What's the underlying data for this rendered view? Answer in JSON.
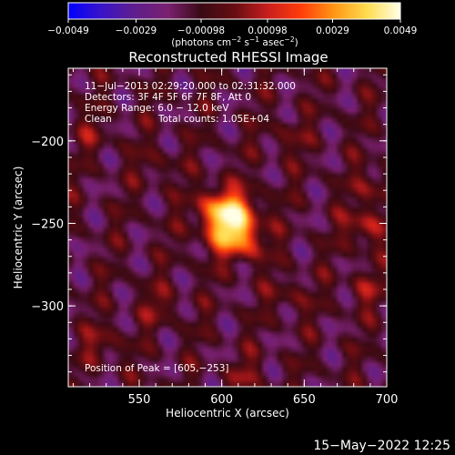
{
  "colors": {
    "background": "#000000",
    "axis": "#ffffff",
    "colormap": [
      "#0000ff",
      "#3a14c8",
      "#5f1e8c",
      "#7a2070",
      "#3a0a14",
      "#650d12",
      "#c81e1e",
      "#ff3c0a",
      "#ff9614",
      "#ffdc50",
      "#ffffe6"
    ]
  },
  "colorbar": {
    "tick_labels": [
      "−0.0049",
      "−0.0029",
      "−0.00098",
      "0.00098",
      "0.0029",
      "0.0049"
    ],
    "ticks": [
      -0.0049,
      -0.0029,
      -0.00098,
      0.00098,
      0.0029,
      0.0049
    ],
    "range": [
      -0.0049,
      0.0049
    ],
    "unit_text": "(photons cm",
    "unit_exp1": "−2",
    "unit_mid": " s",
    "unit_exp2": "−1",
    "unit_mid2": " asec",
    "unit_exp3": "−2",
    "unit_close": ")"
  },
  "overlay": {
    "time_range": "11−Jul−2013 02:29:20.000 to 02:31:32.000",
    "detectors": "Detectors: 3F 4F 5F 6F 7F 8F, Att 0",
    "energy": "Energy Range: 6.0 − 12.0 keV",
    "method": "Clean",
    "counts": "Total counts: 1.05E+04",
    "peak": "Position of Peak = [605,−253]"
  },
  "footer": {
    "date": "15−May−2022 12:25"
  },
  "chart_data": {
    "type": "heatmap",
    "title": "Reconstructed RHESSI Image",
    "xlabel": "Heliocentric X (arcsec)",
    "ylabel": "Heliocentric Y (arcsec)",
    "xlim": [
      507,
      700
    ],
    "ylim": [
      -349,
      -156
    ],
    "x_ticks": [
      550,
      600,
      650,
      700
    ],
    "x_tick_labels": [
      "550",
      "600",
      "650",
      "700"
    ],
    "y_ticks": [
      -200,
      -250,
      -300
    ],
    "y_tick_labels": [
      "−200",
      "−250",
      "−300"
    ],
    "value_range": [
      -0.0049,
      0.0049
    ],
    "peak": [
      605,
      -253
    ],
    "peak_value": 0.0049,
    "sources": [
      {
        "x": 605,
        "y": -251,
        "amp": 0.0049
      },
      {
        "x": 596,
        "y": -239,
        "amp": 0.0022
      },
      {
        "x": 614,
        "y": -262,
        "amp": 0.0018
      },
      {
        "x": 612,
        "y": -240,
        "amp": 0.0012
      },
      {
        "x": 686,
        "y": -252,
        "amp": 0.0022
      },
      {
        "x": 693,
        "y": -228,
        "amp": 0.0016
      },
      {
        "x": 687,
        "y": -290,
        "amp": 0.0013
      },
      {
        "x": 528,
        "y": -323,
        "amp": 0.0014
      },
      {
        "x": 562,
        "y": -300,
        "amp": 0.0012
      },
      {
        "x": 641,
        "y": -294,
        "amp": 0.0011
      },
      {
        "x": 640,
        "y": -198,
        "amp": 0.001
      },
      {
        "x": 614,
        "y": -342,
        "amp": 0.0011
      },
      {
        "x": 522,
        "y": -196,
        "amp": 0.0009
      },
      {
        "x": 560,
        "y": -215,
        "amp": 0.0008
      }
    ]
  }
}
